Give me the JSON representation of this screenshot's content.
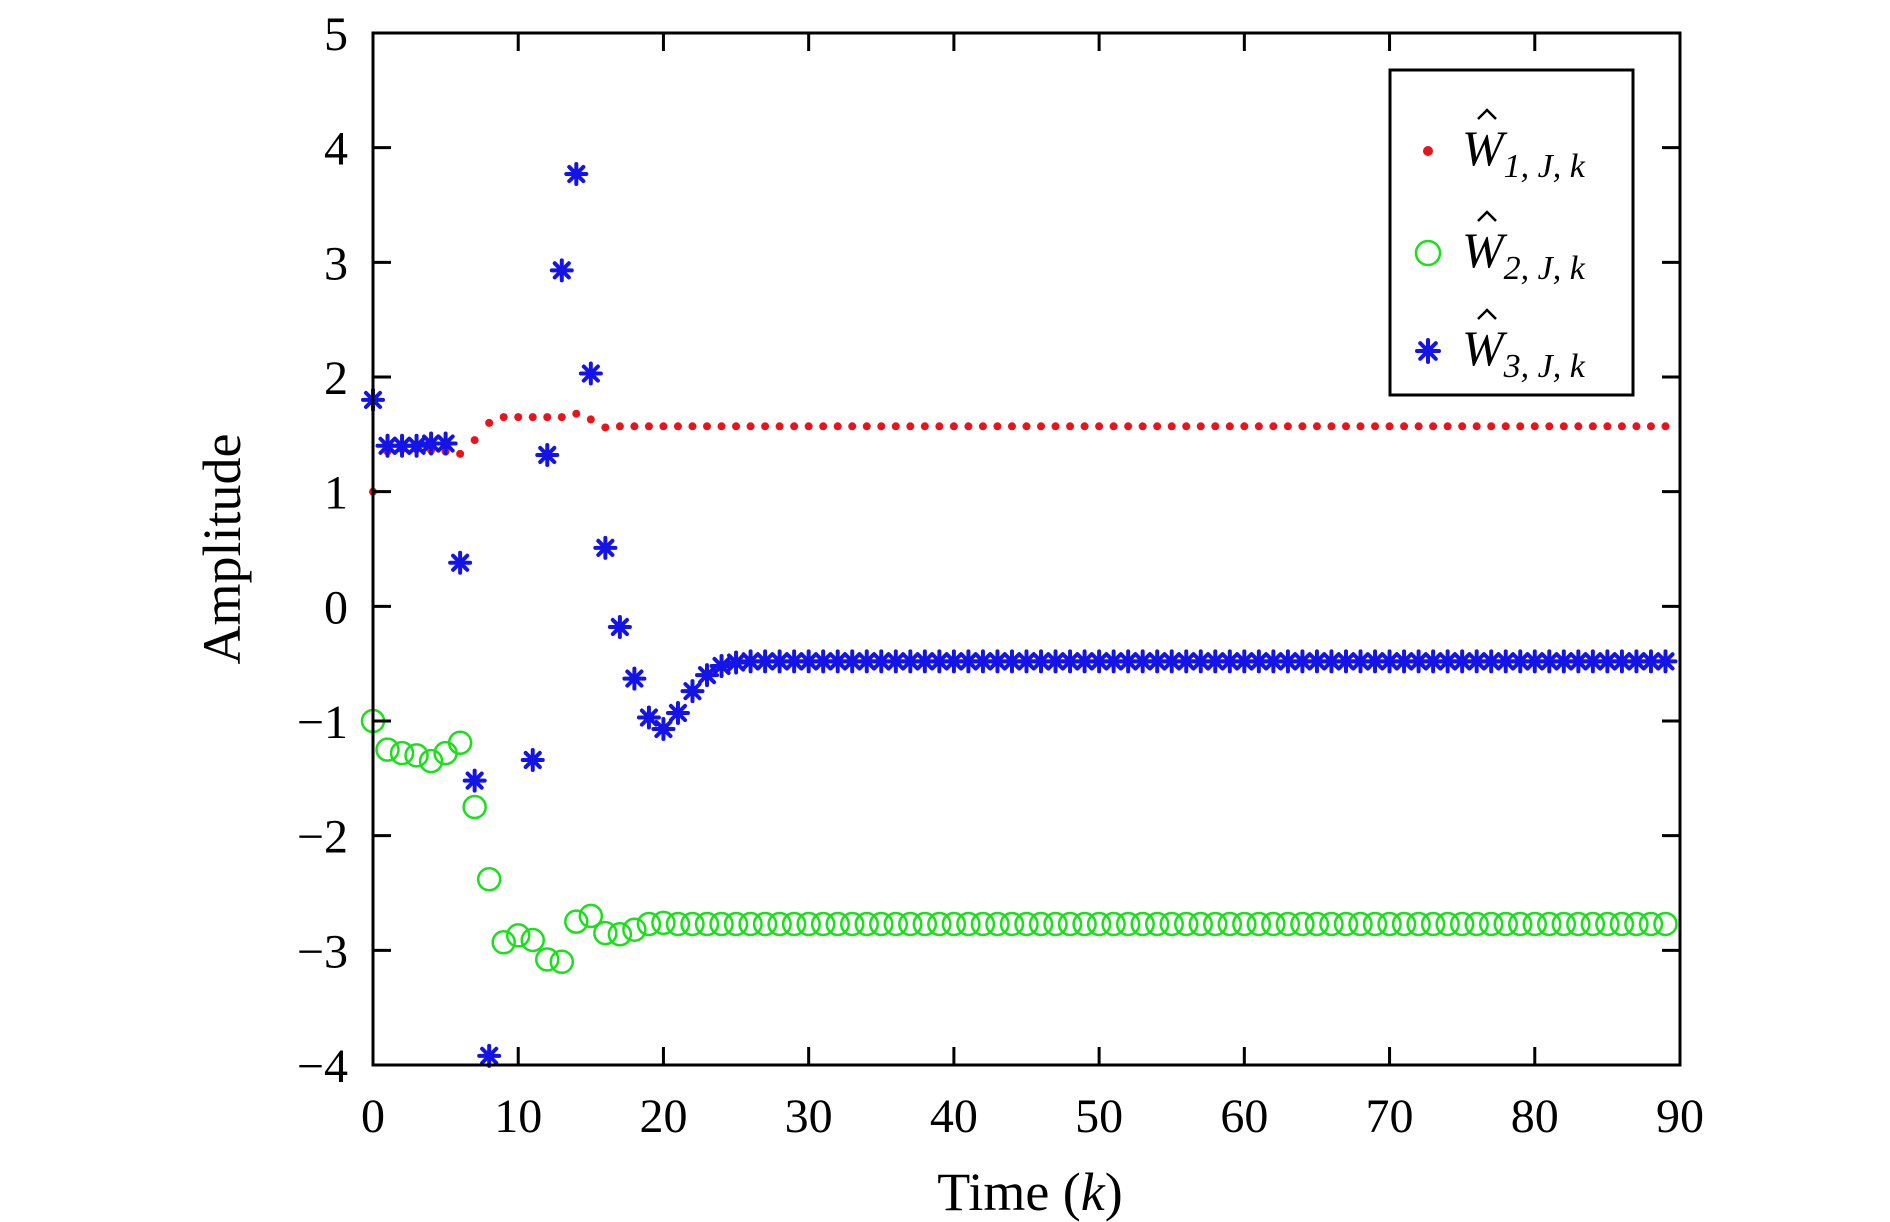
{
  "chart_data": {
    "type": "scatter",
    "title": "",
    "xlabel": "Time (k)",
    "xlabel_main": "Time (",
    "xlabel_var": "k",
    "xlabel_close": ")",
    "ylabel": "Amplitude",
    "xlim": [
      0,
      90
    ],
    "ylim": [
      -4,
      5
    ],
    "xticks": [
      0,
      10,
      20,
      30,
      40,
      50,
      60,
      70,
      80,
      90
    ],
    "yticks": [
      5,
      4,
      3,
      2,
      1,
      0,
      -1,
      -2,
      -3,
      -4
    ],
    "grid": false,
    "legend_position": "top-right",
    "series": [
      {
        "name": "Ŵ1,J,k",
        "legend_base": "W",
        "legend_sub": "1, J, k",
        "marker": "dot",
        "color": "#e8141b",
        "prefix": [
          1.0,
          1.35,
          1.37,
          1.37,
          1.36,
          1.35,
          1.33,
          1.45,
          1.6,
          1.65,
          1.65,
          1.65,
          1.65,
          1.65,
          1.68,
          1.63,
          1.56,
          1.57,
          1.57,
          1.57,
          1.57
        ],
        "steady": 1.57
      },
      {
        "name": "Ŵ2,J,k",
        "legend_base": "W",
        "legend_sub": "2, J, k",
        "marker": "circle",
        "color": "#19e019",
        "prefix": [
          -1.0,
          -1.25,
          -1.28,
          -1.3,
          -1.35,
          -1.28,
          -1.19,
          -1.75,
          -2.38,
          -2.93,
          -2.87,
          -2.91,
          -3.08,
          -3.1,
          -2.75,
          -2.7,
          -2.85,
          -2.86,
          -2.82,
          -2.77,
          -2.76,
          -2.77
        ],
        "steady": -2.77
      },
      {
        "name": "Ŵ3,J,k",
        "legend_base": "W",
        "legend_sub": "3, J, k",
        "marker": "asterisk",
        "color": "#1414e6",
        "prefix": [
          1.8,
          1.4,
          1.4,
          1.4,
          1.42,
          1.42,
          0.38,
          -1.52,
          -3.92,
          null,
          null,
          -1.34,
          1.32,
          2.93,
          3.77,
          2.03,
          0.51,
          -0.18,
          -0.63,
          -0.97,
          -1.07,
          -0.93,
          -0.74,
          -0.6,
          -0.52,
          -0.49
        ],
        "steady": -0.48
      }
    ],
    "x_count": 90
  }
}
